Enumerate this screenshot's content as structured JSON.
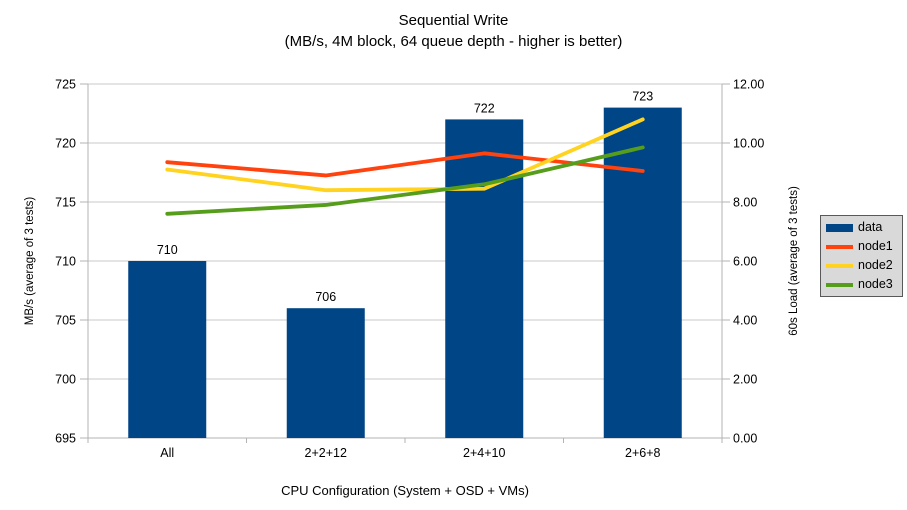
{
  "title": {
    "text": "Sequential Write",
    "subtitle": "(MB/s, 4M block, 64 queue depth - higher is better)"
  },
  "chart_data": {
    "type": "combo-bar-line",
    "categories": [
      "All",
      "2+2+12",
      "2+4+10",
      "2+6+8"
    ],
    "series": [
      {
        "name": "data",
        "type": "bar",
        "axis": "left",
        "color": "#004586",
        "values": [
          710,
          706,
          722,
          723
        ],
        "data_labels": [
          "710",
          "706",
          "722",
          "723"
        ]
      },
      {
        "name": "node1",
        "type": "line",
        "axis": "right",
        "color": "#ff420e",
        "values": [
          9.35,
          8.9,
          9.65,
          9.05
        ]
      },
      {
        "name": "node2",
        "type": "line",
        "axis": "right",
        "color": "#ffd320",
        "values": [
          9.1,
          8.4,
          8.45,
          10.8
        ]
      },
      {
        "name": "node3",
        "type": "line",
        "axis": "right",
        "color": "#579d1c",
        "values": [
          7.6,
          7.9,
          8.6,
          9.85
        ]
      }
    ],
    "axes": {
      "left": {
        "title": "MB/s (average of 3 tests)",
        "min": 695,
        "max": 725,
        "tick_labels": [
          "695",
          "700",
          "705",
          "710",
          "715",
          "720",
          "725"
        ]
      },
      "right": {
        "title": "60s Load (average of 3 tests)",
        "min": 0,
        "max": 12,
        "tick_labels": [
          "0.00",
          "2.00",
          "4.00",
          "6.00",
          "8.00",
          "10.00",
          "12.00"
        ]
      },
      "x": {
        "title": "CPU Configuration (System + OSD + VMs)"
      }
    },
    "legend": {
      "position": "right"
    },
    "grid": "horizontal",
    "colors": {
      "grid": "#c9c9c9",
      "axis": "#b3b3b3",
      "text": "#000000",
      "legend_bg": "#d9d9d9",
      "legend_border": "#595959"
    }
  }
}
